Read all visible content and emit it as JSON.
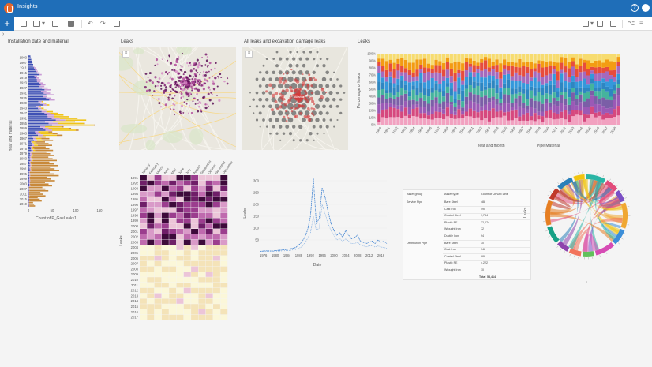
{
  "app": {
    "title": "Insights",
    "help_glyph": "?",
    "add_glyph": "+",
    "chevron": "›",
    "icons": [
      "app-logo-icon",
      "help-icon",
      "user-avatar-icon"
    ]
  },
  "cards": {
    "installation": {
      "title": "Installation date and material",
      "ylabel": "Year and material",
      "xlabel": "Count of P_GasLeaks1"
    },
    "leaks_map": {
      "title": "Leaks"
    },
    "damage_map": {
      "title": "All leaks and excavation damage leaks",
      "label": "Atlanta"
    },
    "pct_chart": {
      "title": "Leaks",
      "ylabel": "Percentage of leaks",
      "xlabel": "Year and month",
      "legend_title": "Pipe Material"
    },
    "heatmap": {
      "ylabel": "Leaks"
    },
    "line_chart": {
      "ylabel": "Leaks",
      "xlabel": "Date"
    },
    "table": {
      "headers": [
        "Asset group",
        "Asset type",
        "Count of UPDM Line"
      ],
      "rows": [
        {
          "group": "Service Pipe",
          "type": "Bare Steel",
          "count": "488"
        },
        {
          "group": "",
          "type": "Cast Iron",
          "count": "490"
        },
        {
          "group": "",
          "type": "Coated Steel",
          "count": "9,784"
        },
        {
          "group": "",
          "type": "Plastic PE",
          "count": "32,074"
        },
        {
          "group": "",
          "type": "Wrought Iron",
          "count": "72"
        },
        {
          "group": "",
          "type": "Ductile Iron",
          "count": "94"
        },
        {
          "group": "Distribution Pipe",
          "type": "Bare Steel",
          "count": "30"
        },
        {
          "group": "",
          "type": "Cast Iron",
          "count": "746"
        },
        {
          "group": "",
          "type": "Coated Steel",
          "count": "988"
        },
        {
          "group": "",
          "type": "Plastic PE",
          "count": "4,222"
        },
        {
          "group": "",
          "type": "Wrought Iron",
          "count": "10"
        }
      ],
      "total_label": "Total",
      "total_value": "53,414",
      "side_label": "Leaks"
    }
  },
  "chart_data": [
    {
      "type": "bar",
      "orientation": "horizontal",
      "stacked": true,
      "title": "Installation date and material",
      "ylabel": "Year and material",
      "xlabel": "Count of P_GasLeaks1",
      "xticks": [
        "0",
        "50",
        "100",
        "150"
      ],
      "xlim": [
        0,
        160
      ],
      "categories": [
        "1903",
        "1907",
        "1911",
        "1915",
        "1919",
        "1923",
        "1927",
        "1931",
        "1935",
        "1939",
        "1943",
        "1947",
        "1951",
        "1955",
        "1959",
        "1963",
        "1967",
        "1971",
        "1975",
        "1979",
        "1983",
        "1987",
        "1991",
        "1995",
        "1999",
        "2003",
        "2007",
        "2011",
        "2015",
        "2019"
      ],
      "series": [
        {
          "color": "#3f51b5",
          "values": [
            6,
            10,
            14,
            22,
            18,
            26,
            34,
            38,
            44,
            30,
            24,
            40,
            58,
            50,
            36,
            20,
            12,
            8,
            6,
            4,
            4,
            3,
            3,
            2,
            2,
            2,
            1,
            1,
            1,
            1
          ]
        },
        {
          "color": "#c99bd6",
          "values": [
            0,
            0,
            4,
            6,
            8,
            10,
            14,
            16,
            12,
            10,
            8,
            14,
            20,
            24,
            14,
            10,
            6,
            4,
            4,
            4,
            4,
            3,
            3,
            2,
            2,
            2,
            1,
            1,
            1,
            1
          ]
        },
        {
          "color": "#f0c419",
          "values": [
            0,
            0,
            0,
            0,
            0,
            0,
            0,
            0,
            0,
            4,
            6,
            20,
            44,
            64,
            50,
            30,
            14,
            8,
            4,
            2,
            2,
            1,
            1,
            0,
            0,
            0,
            0,
            0,
            0,
            0
          ]
        },
        {
          "color": "#c8893a",
          "values": [
            0,
            0,
            0,
            0,
            0,
            0,
            0,
            0,
            0,
            0,
            0,
            0,
            0,
            2,
            6,
            12,
            20,
            30,
            38,
            44,
            50,
            56,
            58,
            60,
            52,
            46,
            40,
            34,
            26,
            12
          ]
        }
      ]
    },
    {
      "type": "bar",
      "stacked": true,
      "normalized": true,
      "title": "Leaks",
      "ylabel": "Percentage of leaks",
      "xlabel": "Year and month",
      "yticks": [
        "0%",
        "10%",
        "20%",
        "30%",
        "40%",
        "50%",
        "60%",
        "70%",
        "80%",
        "90%",
        "100%"
      ],
      "ylim": [
        0,
        100
      ],
      "categories": [
        "1990",
        "1991",
        "1992",
        "1993",
        "1994",
        "1995",
        "1996",
        "1997",
        "1998",
        "1999",
        "2000",
        "2001",
        "2002",
        "2003",
        "2004",
        "2005",
        "2006",
        "2007",
        "2008",
        "2009",
        "2010",
        "2011",
        "2012",
        "2013",
        "2014",
        "2015",
        "2016",
        "2017",
        "2018"
      ],
      "legend_title": "Pipe Material",
      "series_colors": [
        "#f2a1c0",
        "#d6487e",
        "#9b59b6",
        "#7b5ea7",
        "#45b39d",
        "#2e86c1",
        "#3498db",
        "#a569bd",
        "#e74c3c",
        "#f39c12",
        "#f7dc6f"
      ]
    },
    {
      "type": "heatmap",
      "ylabel": "Leaks",
      "xcategories": [
        "January",
        "February",
        "March",
        "April",
        "May",
        "June",
        "July",
        "August",
        "September",
        "October",
        "November",
        "December"
      ],
      "ycategories": [
        "1991",
        "1992",
        "1993",
        "1994",
        "1995",
        "1996",
        "1997",
        "1998",
        "1999",
        "2000",
        "2001",
        "2002",
        "2003",
        "2004",
        "2005",
        "2006",
        "2007",
        "2008",
        "2009",
        "2010",
        "2011",
        "2012",
        "2013",
        "2014",
        "2015",
        "2016",
        "2017"
      ],
      "value_range": [
        0,
        10
      ]
    },
    {
      "type": "line",
      "ylabel": "Leaks",
      "xlabel": "Date",
      "yticks": [
        50,
        100,
        150,
        200,
        250,
        300
      ],
      "ylim": [
        0,
        320
      ],
      "xticks": [
        "1976",
        "1980",
        "1984",
        "1988",
        "1992",
        "1996",
        "2000",
        "2004",
        "2008",
        "2012",
        "2016"
      ],
      "x": [
        1975,
        1977,
        1979,
        1981,
        1983,
        1985,
        1987,
        1989,
        1990,
        1991,
        1992,
        1993,
        1994,
        1995,
        1996,
        1997,
        1998,
        1999,
        2000,
        2001,
        2002,
        2003,
        2004,
        2005,
        2006,
        2007,
        2008,
        2009,
        2010,
        2011,
        2012,
        2013,
        2014,
        2015,
        2016,
        2017,
        2018
      ],
      "series": [
        {
          "values": [
            2,
            4,
            3,
            6,
            8,
            12,
            18,
            40,
            60,
            90,
            150,
            310,
            120,
            140,
            270,
            230,
            170,
            120,
            90,
            70,
            80,
            60,
            90,
            70,
            55,
            60,
            70,
            45,
            40,
            35,
            40,
            45,
            35,
            50,
            40,
            45,
            35
          ]
        },
        {
          "values": [
            1,
            2,
            2,
            3,
            4,
            6,
            10,
            20,
            35,
            55,
            80,
            150,
            90,
            100,
            200,
            160,
            120,
            90,
            70,
            50,
            55,
            45,
            55,
            45,
            35,
            35,
            40,
            30,
            25,
            20,
            25,
            25,
            20,
            25,
            20,
            18,
            15
          ]
        }
      ]
    },
    {
      "type": "chord",
      "label_glyphs": "tick"
    }
  ]
}
